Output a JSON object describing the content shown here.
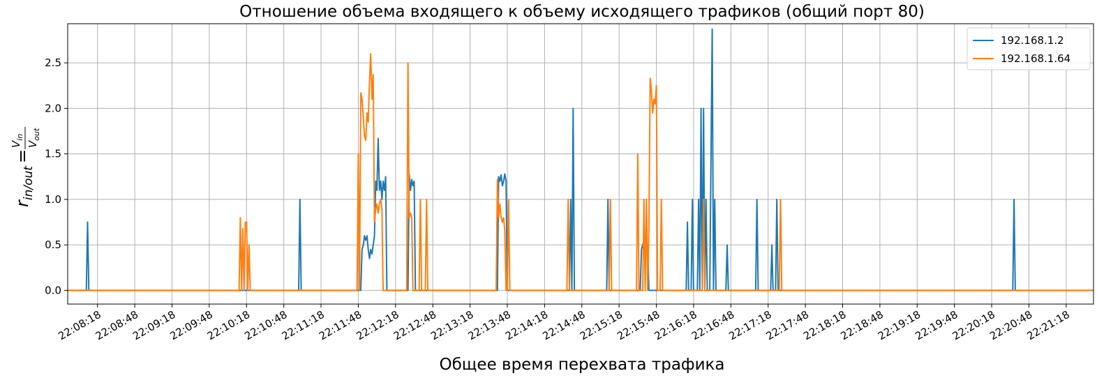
{
  "chart_data": {
    "type": "line",
    "title": "Отношение объема входящего к объему исходящего трафиков (общий порт 80)",
    "xlabel": "Общее время перехвата трафика",
    "ylabel": {
      "main": "r",
      "sub": "in/out",
      "equals": "=",
      "num_main": "V",
      "num_sub": "in",
      "den_main": "V",
      "den_sub": "out"
    },
    "xlim": [
      "22:07:54",
      "22:21:40"
    ],
    "ylim": [
      -0.15,
      2.93
    ],
    "x_ticks": [
      "22:08:18",
      "22:08:48",
      "22:09:18",
      "22:09:48",
      "22:10:18",
      "22:10:48",
      "22:11:18",
      "22:11:48",
      "22:12:18",
      "22:12:48",
      "22:13:18",
      "22:13:48",
      "22:14:18",
      "22:14:48",
      "22:15:18",
      "22:15:48",
      "22:16:18",
      "22:16:48",
      "22:17:18",
      "22:17:48",
      "22:18:18",
      "22:18:48",
      "22:19:18",
      "22:19:48",
      "22:20:18",
      "22:20:48",
      "22:21:18"
    ],
    "y_ticks": [
      "0.0",
      "0.5",
      "1.0",
      "1.5",
      "2.0",
      "2.5"
    ],
    "grid": true,
    "legend_position": "top-right",
    "series": [
      {
        "name": "192.168.1.2",
        "color": "#1f77b4",
        "points": [
          [
            "22:07:54",
            0
          ],
          [
            "22:08:09",
            0
          ],
          [
            "22:08:10",
            0.75
          ],
          [
            "22:08:11",
            0
          ],
          [
            "22:11:00",
            0
          ],
          [
            "22:11:01",
            1.0
          ],
          [
            "22:11:02",
            0
          ],
          [
            "22:11:50",
            0
          ],
          [
            "22:11:51",
            0.45
          ],
          [
            "22:11:52",
            0.5
          ],
          [
            "22:11:53",
            0.6
          ],
          [
            "22:11:54",
            0.55
          ],
          [
            "22:11:55",
            0.6
          ],
          [
            "22:11:56",
            0.45
          ],
          [
            "22:11:57",
            0.35
          ],
          [
            "22:11:58",
            0.45
          ],
          [
            "22:11:59",
            0.4
          ],
          [
            "22:12:00",
            0.5
          ],
          [
            "22:12:01",
            0.6
          ],
          [
            "22:12:02",
            1.2
          ],
          [
            "22:12:03",
            1.1
          ],
          [
            "22:12:04",
            1.67
          ],
          [
            "22:12:05",
            1.1
          ],
          [
            "22:12:06",
            1.2
          ],
          [
            "22:12:07",
            1.0
          ],
          [
            "22:12:08",
            1.2
          ],
          [
            "22:12:09",
            1.1
          ],
          [
            "22:12:10",
            1.25
          ],
          [
            "22:12:11",
            0
          ],
          [
            "22:12:28",
            0
          ],
          [
            "22:12:29",
            1.28
          ],
          [
            "22:12:30",
            1.1
          ],
          [
            "22:12:31",
            1.22
          ],
          [
            "22:12:32",
            1.15
          ],
          [
            "22:12:33",
            1.2
          ],
          [
            "22:12:34",
            0
          ],
          [
            "22:13:40",
            0
          ],
          [
            "22:13:41",
            1.25
          ],
          [
            "22:13:42",
            1.2
          ],
          [
            "22:13:43",
            1.27
          ],
          [
            "22:13:44",
            1.15
          ],
          [
            "22:13:45",
            1.2
          ],
          [
            "22:13:46",
            1.28
          ],
          [
            "22:13:47",
            1.2
          ],
          [
            "22:13:48",
            0
          ],
          [
            "22:14:38",
            0
          ],
          [
            "22:14:39",
            1.0
          ],
          [
            "22:14:40",
            0
          ],
          [
            "22:14:41",
            2.0
          ],
          [
            "22:14:42",
            0
          ],
          [
            "22:15:08",
            0
          ],
          [
            "22:15:09",
            1.0
          ],
          [
            "22:15:10",
            0
          ],
          [
            "22:15:35",
            0
          ],
          [
            "22:15:36",
            0.45
          ],
          [
            "22:15:37",
            0.5
          ],
          [
            "22:15:38",
            0.55
          ],
          [
            "22:15:39",
            0.5
          ],
          [
            "22:15:40",
            0.5
          ],
          [
            "22:15:41",
            0.5
          ],
          [
            "22:15:42",
            0
          ],
          [
            "22:16:12",
            0
          ],
          [
            "22:16:13",
            0.75
          ],
          [
            "22:16:14",
            0
          ],
          [
            "22:16:16",
            0
          ],
          [
            "22:16:17",
            1.0
          ],
          [
            "22:16:18",
            0
          ],
          [
            "22:16:21",
            0
          ],
          [
            "22:16:22",
            1.0
          ],
          [
            "22:16:23",
            0
          ],
          [
            "22:16:24",
            2.0
          ],
          [
            "22:16:25",
            0
          ],
          [
            "22:16:26",
            2.0
          ],
          [
            "22:16:27",
            0
          ],
          [
            "22:16:28",
            1.0
          ],
          [
            "22:16:29",
            0
          ],
          [
            "22:16:31",
            0
          ],
          [
            "22:16:32",
            1.5
          ],
          [
            "22:16:33",
            2.87
          ],
          [
            "22:16:34",
            0
          ],
          [
            "22:16:35",
            1.0
          ],
          [
            "22:16:36",
            0
          ],
          [
            "22:16:44",
            0
          ],
          [
            "22:16:45",
            0.5
          ],
          [
            "22:16:46",
            0
          ],
          [
            "22:17:08",
            0
          ],
          [
            "22:17:09",
            1.0
          ],
          [
            "22:17:10",
            0
          ],
          [
            "22:17:20",
            0
          ],
          [
            "22:17:21",
            0.5
          ],
          [
            "22:17:22",
            0
          ],
          [
            "22:17:24",
            0
          ],
          [
            "22:17:25",
            1.0
          ],
          [
            "22:17:26",
            0
          ],
          [
            "22:20:35",
            0
          ],
          [
            "22:20:36",
            1.0
          ],
          [
            "22:20:37",
            0
          ],
          [
            "22:21:40",
            0
          ]
        ]
      },
      {
        "name": "192.168.1.64",
        "color": "#ff7f0e",
        "points": [
          [
            "22:07:54",
            0
          ],
          [
            "22:10:12",
            0
          ],
          [
            "22:10:13",
            0.8
          ],
          [
            "22:10:14",
            0
          ],
          [
            "22:10:15",
            0.68
          ],
          [
            "22:10:16",
            0
          ],
          [
            "22:10:17",
            0.75
          ],
          [
            "22:10:18",
            0.75
          ],
          [
            "22:10:19",
            0
          ],
          [
            "22:10:20",
            0.5
          ],
          [
            "22:10:21",
            0
          ],
          [
            "22:11:47",
            0
          ],
          [
            "22:11:48",
            1.5
          ],
          [
            "22:11:49",
            0
          ],
          [
            "22:11:50",
            2.17
          ],
          [
            "22:11:51",
            2.1
          ],
          [
            "22:11:52",
            1.9
          ],
          [
            "22:11:53",
            1.7
          ],
          [
            "22:11:54",
            1.65
          ],
          [
            "22:11:55",
            1.95
          ],
          [
            "22:11:56",
            1.85
          ],
          [
            "22:11:57",
            2.3
          ],
          [
            "22:11:58",
            2.6
          ],
          [
            "22:11:59",
            2.1
          ],
          [
            "22:12:00",
            2.37
          ],
          [
            "22:12:01",
            0.75
          ],
          [
            "22:12:02",
            0.9
          ],
          [
            "22:12:03",
            0.95
          ],
          [
            "22:12:04",
            0.85
          ],
          [
            "22:12:05",
            0.95
          ],
          [
            "22:12:06",
            1.0
          ],
          [
            "22:12:07",
            0.9
          ],
          [
            "22:12:08",
            0
          ],
          [
            "22:12:27",
            0
          ],
          [
            "22:12:28",
            2.5
          ],
          [
            "22:12:29",
            0.8
          ],
          [
            "22:12:30",
            0.85
          ],
          [
            "22:12:31",
            0.8
          ],
          [
            "22:12:32",
            0
          ],
          [
            "22:12:37",
            0
          ],
          [
            "22:12:38",
            1.0
          ],
          [
            "22:12:39",
            0
          ],
          [
            "22:12:42",
            0
          ],
          [
            "22:12:43",
            1.0
          ],
          [
            "22:12:44",
            0
          ],
          [
            "22:13:39",
            0
          ],
          [
            "22:13:40",
            1.22
          ],
          [
            "22:13:41",
            0.8
          ],
          [
            "22:13:42",
            0.95
          ],
          [
            "22:13:43",
            0.8
          ],
          [
            "22:13:44",
            0.75
          ],
          [
            "22:13:45",
            0.8
          ],
          [
            "22:13:46",
            0.65
          ],
          [
            "22:13:47",
            0
          ],
          [
            "22:13:48",
            0
          ],
          [
            "22:13:49",
            1.0
          ],
          [
            "22:13:50",
            0
          ],
          [
            "22:14:36",
            0
          ],
          [
            "22:14:37",
            1.0
          ],
          [
            "22:14:38",
            0
          ],
          [
            "22:15:10",
            0
          ],
          [
            "22:15:11",
            1.0
          ],
          [
            "22:15:12",
            0
          ],
          [
            "22:15:32",
            0
          ],
          [
            "22:15:33",
            1.5
          ],
          [
            "22:15:34",
            0
          ],
          [
            "22:15:37",
            0
          ],
          [
            "22:15:38",
            1.0
          ],
          [
            "22:15:39",
            0
          ],
          [
            "22:15:40",
            1.0
          ],
          [
            "22:15:41",
            0
          ],
          [
            "22:15:42",
            0.7
          ],
          [
            "22:15:43",
            2.33
          ],
          [
            "22:15:44",
            2.2
          ],
          [
            "22:15:45",
            1.95
          ],
          [
            "22:15:46",
            2.1
          ],
          [
            "22:15:47",
            2.05
          ],
          [
            "22:15:48",
            2.25
          ],
          [
            "22:15:49",
            0
          ],
          [
            "22:15:51",
            0
          ],
          [
            "22:15:52",
            1.0
          ],
          [
            "22:15:53",
            0
          ],
          [
            "22:16:25",
            0
          ],
          [
            "22:16:26",
            1.0
          ],
          [
            "22:16:27",
            0
          ],
          [
            "22:17:27",
            0
          ],
          [
            "22:17:28",
            1.0
          ],
          [
            "22:17:29",
            0
          ],
          [
            "22:21:40",
            0
          ]
        ]
      }
    ]
  }
}
